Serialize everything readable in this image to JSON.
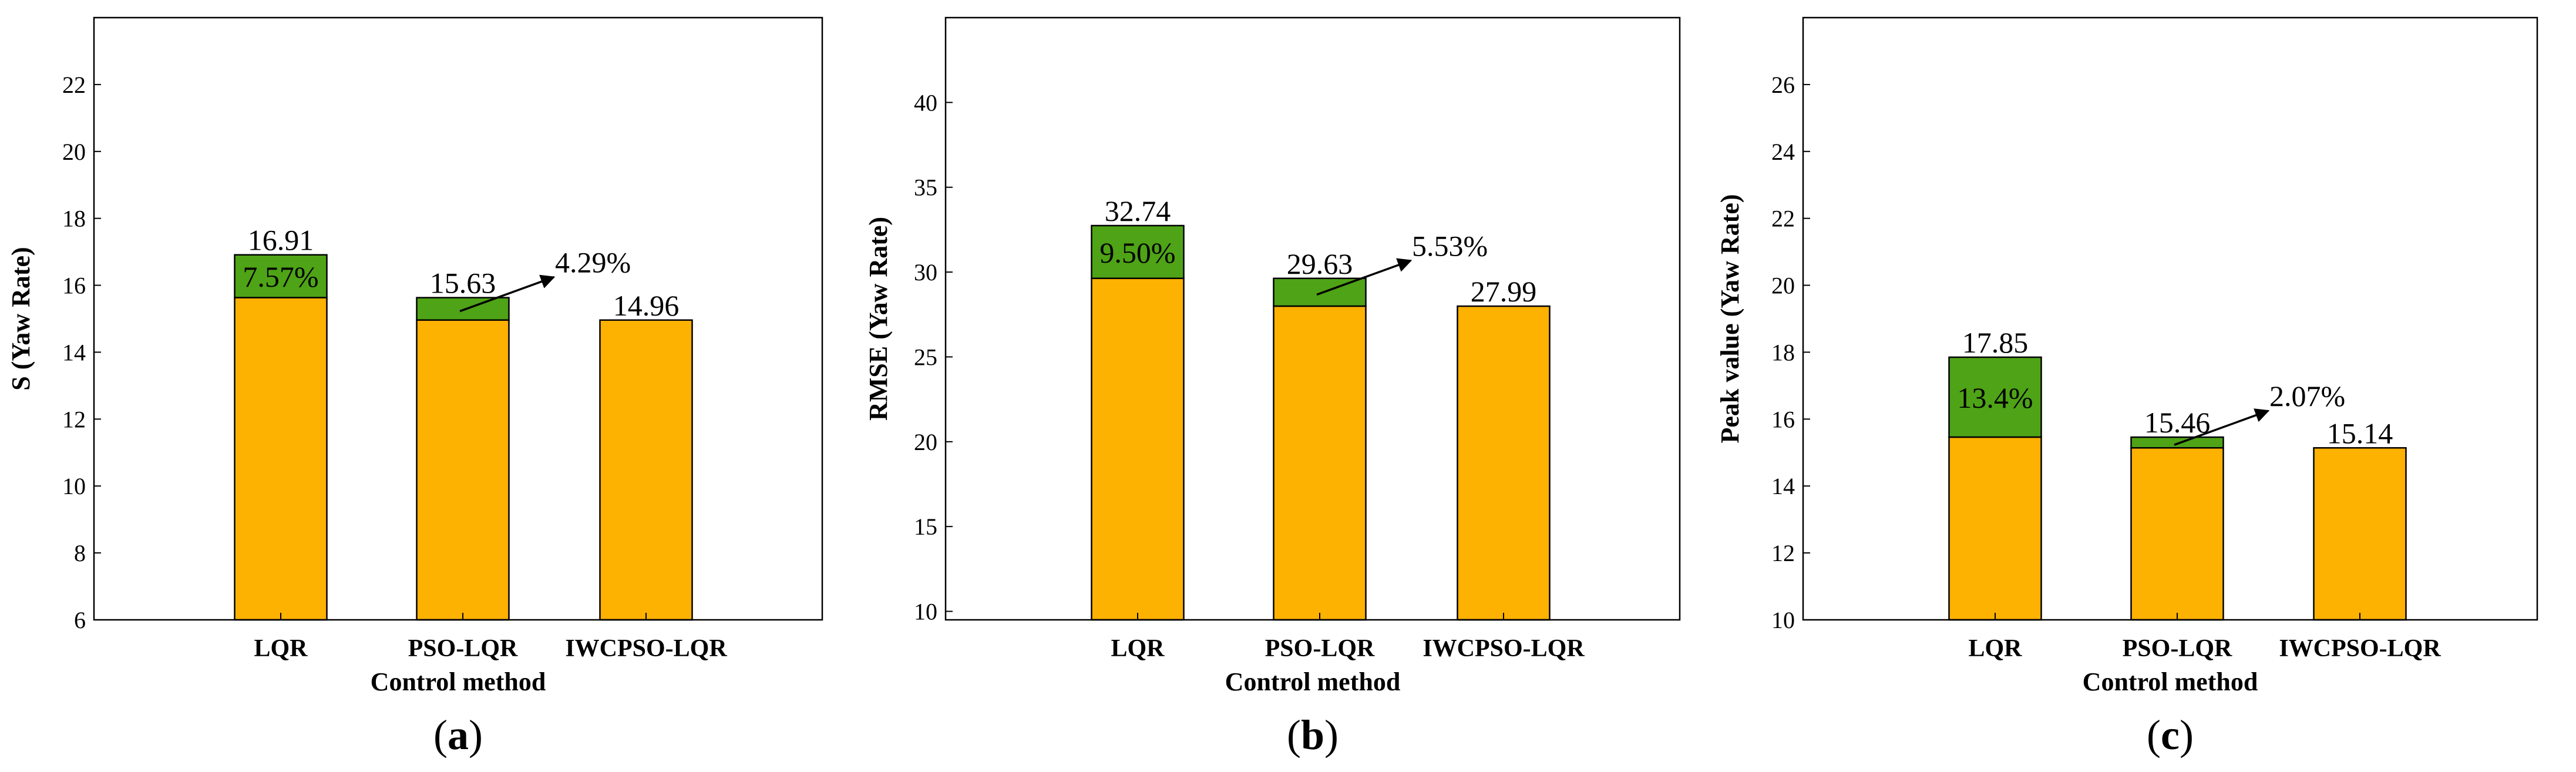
{
  "colors": {
    "base": "#FDB101",
    "improvement": "#4EA316",
    "frame": "#000000"
  },
  "chart_data": [
    {
      "type": "bar",
      "panel_label_parts": [
        "(",
        "a",
        ")"
      ],
      "categories": [
        "LQR",
        "PSO-LQR",
        "IWCPSO-LQR"
      ],
      "values": [
        16.91,
        15.63,
        14.96
      ],
      "value_labels": [
        "16.91",
        "15.63",
        "14.96"
      ],
      "segment_tops": [
        15.63,
        14.96,
        14.96
      ],
      "percent_labels": [
        "7.57%",
        "4.29%"
      ],
      "xlabel": "Control method",
      "ylabel": "S (Yaw Rate)",
      "ylim": [
        6,
        24
      ],
      "yticks": [
        6,
        8,
        10,
        12,
        14,
        16,
        18,
        20,
        22
      ],
      "ytick_labels": [
        "6",
        "8",
        "10",
        "12",
        "14",
        "16",
        "18",
        "20",
        "22"
      ],
      "grid": false
    },
    {
      "type": "bar",
      "panel_label_parts": [
        "(",
        "b",
        ")"
      ],
      "categories": [
        "LQR",
        "PSO-LQR",
        "IWCPSO-LQR"
      ],
      "values": [
        32.74,
        29.63,
        27.99
      ],
      "value_labels": [
        "32.74",
        "29.63",
        "27.99"
      ],
      "segment_tops": [
        29.63,
        27.99,
        27.99
      ],
      "percent_labels": [
        "9.50%",
        "5.53%"
      ],
      "xlabel": "Control method",
      "ylabel": "RMSE (Yaw Rate)",
      "ylim": [
        9.5,
        45
      ],
      "yticks": [
        10,
        15,
        20,
        25,
        30,
        35,
        40
      ],
      "ytick_labels": [
        "10",
        "15",
        "20",
        "25",
        "30",
        "35",
        "40"
      ],
      "grid": false
    },
    {
      "type": "bar",
      "panel_label_parts": [
        "(",
        "c",
        ")"
      ],
      "categories": [
        "LQR",
        "PSO-LQR",
        "IWCPSO-LQR"
      ],
      "values": [
        17.85,
        15.46,
        15.14
      ],
      "value_labels": [
        "17.85",
        "15.46",
        "15.14"
      ],
      "segment_tops": [
        15.46,
        15.14,
        15.14
      ],
      "percent_labels": [
        "13.4%",
        "2.07%"
      ],
      "xlabel": "Control method",
      "ylabel": "Peak value (Yaw Rate)",
      "ylim": [
        10,
        28
      ],
      "yticks": [
        10,
        12,
        14,
        16,
        18,
        20,
        22,
        24,
        26
      ],
      "ytick_labels": [
        "10",
        "12",
        "14",
        "16",
        "18",
        "20",
        "22",
        "24",
        "26"
      ],
      "grid": false
    }
  ]
}
